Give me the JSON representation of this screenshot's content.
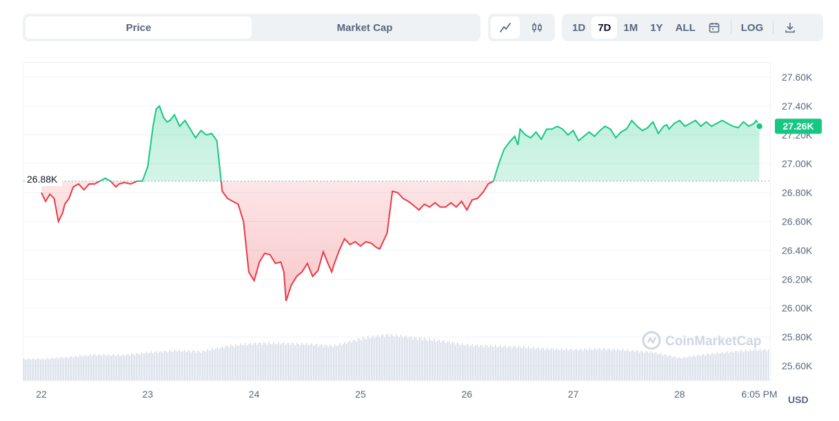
{
  "toolbar": {
    "type_tabs": [
      {
        "label": "Price",
        "active": true
      },
      {
        "label": "Market Cap",
        "active": false
      }
    ],
    "style_icons": [
      {
        "icon": "line-chart-icon",
        "active": true
      },
      {
        "icon": "candlestick-icon",
        "active": false
      }
    ],
    "ranges": [
      {
        "label": "1D",
        "active": false
      },
      {
        "label": "7D",
        "active": true
      },
      {
        "label": "1M",
        "active": false
      },
      {
        "label": "1Y",
        "active": false
      },
      {
        "label": "ALL",
        "active": false
      }
    ],
    "calendar_icon": "calendar-icon",
    "log_label": "LOG",
    "download_icon": "download-icon"
  },
  "watermark": "CoinMarketCap",
  "unit_label": "USD",
  "colors": {
    "up": "#16c784",
    "down": "#ea3943",
    "axis": "#58667e",
    "grid": "#eff2f5",
    "volume": "#cfd6e4",
    "badge": "#16c784"
  },
  "chart_data": {
    "type": "area",
    "reference_value": 26880,
    "reference_label": "26.88K",
    "last_value": 27260,
    "last_label": "27.26K",
    "ylim": [
      25500,
      27700
    ],
    "y_ticks": [
      {
        "v": 27600,
        "label": "27.60K"
      },
      {
        "v": 27400,
        "label": "27.40K"
      },
      {
        "v": 27200,
        "label": "27.20K"
      },
      {
        "v": 27000,
        "label": "27.00K"
      },
      {
        "v": 26800,
        "label": "26.80K"
      },
      {
        "v": 26600,
        "label": "26.60K"
      },
      {
        "v": 26400,
        "label": "26.40K"
      },
      {
        "v": 26200,
        "label": "26.20K"
      },
      {
        "v": 26000,
        "label": "26.00K"
      },
      {
        "v": 25800,
        "label": "25.80K"
      },
      {
        "v": 25600,
        "label": "25.60K"
      }
    ],
    "x_ticks": [
      {
        "day": 0,
        "label": "22"
      },
      {
        "day": 1,
        "label": "23"
      },
      {
        "day": 2,
        "label": "24"
      },
      {
        "day": 3,
        "label": "25"
      },
      {
        "day": 4,
        "label": "26"
      },
      {
        "day": 5,
        "label": "27"
      },
      {
        "day": 6,
        "label": "28"
      },
      {
        "day": 6.75,
        "label": "6:05 PM"
      }
    ],
    "series": [
      {
        "day": [
          0,
          0.04,
          0.08,
          0.12,
          0.16,
          0.2,
          0.22,
          0.26,
          0.3,
          0.35,
          0.4,
          0.45,
          0.5,
          0.55,
          0.6,
          0.65,
          0.7,
          0.73,
          0.78,
          0.84,
          0.9,
          0.95,
          1.0,
          1.05,
          1.08,
          1.11,
          1.15,
          1.18,
          1.21,
          1.25,
          1.3,
          1.35,
          1.4,
          1.45,
          1.5,
          1.55,
          1.6,
          1.65,
          1.7,
          1.75,
          1.8,
          1.85,
          1.9,
          1.95,
          2.0,
          2.05,
          2.1,
          2.15,
          2.2,
          2.25,
          2.28,
          2.3,
          2.35,
          2.4,
          2.45,
          2.5,
          2.55,
          2.6,
          2.65,
          2.7,
          2.73,
          2.75,
          2.8,
          2.85,
          2.9,
          2.95,
          3.0,
          3.05,
          3.1,
          3.15,
          3.18,
          3.2,
          3.25,
          3.3,
          3.35,
          3.4,
          3.45,
          3.5,
          3.55,
          3.6,
          3.65,
          3.7,
          3.75,
          3.8,
          3.85,
          3.9,
          3.95,
          4.0,
          4.05,
          4.1,
          4.15,
          4.2,
          4.25,
          4.3,
          4.35,
          4.4,
          4.45,
          4.48,
          4.5,
          4.55,
          4.6,
          4.65,
          4.7,
          4.75,
          4.8,
          4.85,
          4.9,
          4.95,
          5.0,
          5.05,
          5.1,
          5.15,
          5.2,
          5.25,
          5.3,
          5.35,
          5.4,
          5.45,
          5.5,
          5.55,
          5.6,
          5.65,
          5.7,
          5.75,
          5.8,
          5.85,
          5.88,
          5.9,
          5.95,
          6.0,
          6.05,
          6.1,
          6.15,
          6.2,
          6.25,
          6.3,
          6.35,
          6.4,
          6.45,
          6.5,
          6.55,
          6.6,
          6.65,
          6.7,
          6.72,
          6.75
        ],
        "values": [
          26800,
          26740,
          26790,
          26760,
          26600,
          26660,
          26720,
          26760,
          26840,
          26860,
          26820,
          26860,
          26860,
          26880,
          26900,
          26880,
          26840,
          26860,
          26870,
          26860,
          26880,
          26880,
          26980,
          27260,
          27380,
          27400,
          27320,
          27290,
          27300,
          27340,
          27260,
          27300,
          27240,
          27180,
          27230,
          27200,
          27210,
          27160,
          26810,
          26760,
          26740,
          26720,
          26600,
          26250,
          26190,
          26320,
          26380,
          26370,
          26310,
          26320,
          26250,
          26050,
          26160,
          26220,
          26250,
          26310,
          26220,
          26260,
          26390,
          26300,
          26250,
          26300,
          26400,
          26480,
          26440,
          26460,
          26430,
          26460,
          26450,
          26420,
          26410,
          26440,
          26520,
          26810,
          26800,
          26760,
          26740,
          26710,
          26680,
          26720,
          26700,
          26730,
          26700,
          26700,
          26730,
          26700,
          26740,
          26680,
          26750,
          26760,
          26800,
          26860,
          26880,
          27000,
          27100,
          27150,
          27190,
          27130,
          27240,
          27200,
          27180,
          27220,
          27170,
          27240,
          27240,
          27260,
          27240,
          27200,
          27230,
          27160,
          27190,
          27220,
          27190,
          27230,
          27260,
          27240,
          27180,
          27220,
          27240,
          27300,
          27260,
          27230,
          27250,
          27290,
          27210,
          27260,
          27270,
          27240,
          27280,
          27300,
          27260,
          27280,
          27300,
          27260,
          27290,
          27260,
          27280,
          27300,
          27280,
          27260,
          27250,
          27290,
          27260,
          27280,
          27300,
          27260
        ]
      }
    ],
    "volume": {
      "day": [
        0,
        0.25,
        0.5,
        0.75,
        1.0,
        1.25,
        1.5,
        1.75,
        2.0,
        2.25,
        2.5,
        2.75,
        3.0,
        3.25,
        3.5,
        3.75,
        4.0,
        4.25,
        4.5,
        4.75,
        5.0,
        5.25,
        5.5,
        5.75,
        6.0,
        6.25,
        6.5,
        6.75
      ],
      "relative": [
        0.46,
        0.5,
        0.55,
        0.54,
        0.6,
        0.64,
        0.62,
        0.74,
        0.8,
        0.8,
        0.78,
        0.74,
        0.9,
        0.98,
        0.92,
        0.85,
        0.76,
        0.74,
        0.72,
        0.68,
        0.66,
        0.68,
        0.65,
        0.6,
        0.48,
        0.56,
        0.62,
        0.66
      ]
    },
    "grid": true,
    "legend": "none"
  }
}
